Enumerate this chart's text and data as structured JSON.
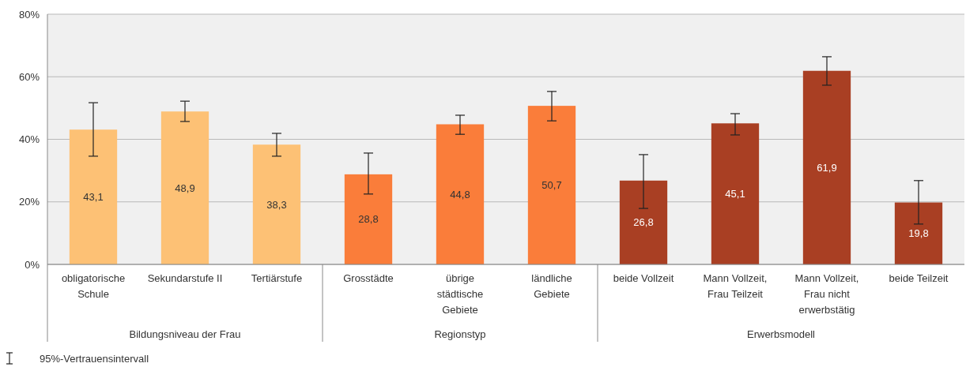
{
  "chart_data": {
    "type": "bar",
    "categories": [
      "obligatorische Schule",
      "Sekundarstufe II",
      "Tertiärstufe",
      "Grosstädte",
      "übrige städtische Gebiete",
      "ländliche Gebiete",
      "beide Vollzeit",
      "Mann Vollzeit, Frau Teilzeit",
      "Mann Vollzeit, Frau nicht erwerbstätig",
      "beide Teilzeit"
    ],
    "values": [
      43.1,
      48.9,
      38.3,
      28.8,
      44.8,
      50.7,
      26.8,
      45.1,
      61.9,
      19.8
    ],
    "colors": [
      "#fdc175",
      "#fdc175",
      "#fdc175",
      "#fa7d3a",
      "#fa7d3a",
      "#fa7d3a",
      "#a93f23",
      "#a93f23",
      "#a93f23",
      "#a93f23"
    ],
    "errors": [
      [
        34.6,
        51.7
      ],
      [
        45.7,
        52.2
      ],
      [
        34.6,
        41.9
      ],
      [
        22.5,
        35.6
      ],
      [
        41.6,
        47.7
      ],
      [
        45.9,
        55.3
      ],
      [
        17.9,
        35.1
      ],
      [
        41.4,
        48.2
      ],
      [
        57.3,
        66.4
      ],
      [
        12.9,
        26.8
      ]
    ],
    "value_labels": [
      "43,1",
      "48,9",
      "38,3",
      "28,8",
      "44,8",
      "50,7",
      "26,8",
      "45,1",
      "61,9",
      "19,8"
    ],
    "ylim": [
      0,
      80
    ],
    "yticks": [
      {
        "value": 0,
        "label": "0%"
      },
      {
        "value": 20,
        "label": "20%"
      },
      {
        "value": 40,
        "label": "40%"
      },
      {
        "value": 60,
        "label": "60%"
      },
      {
        "value": 80,
        "label": "80%"
      }
    ],
    "grid": "y",
    "annotations": [
      "Bildungsniveau der Frau",
      "Regionstyp",
      "Erwerbsmodell",
      "95%-Vertrauensintervall"
    ]
  }
}
